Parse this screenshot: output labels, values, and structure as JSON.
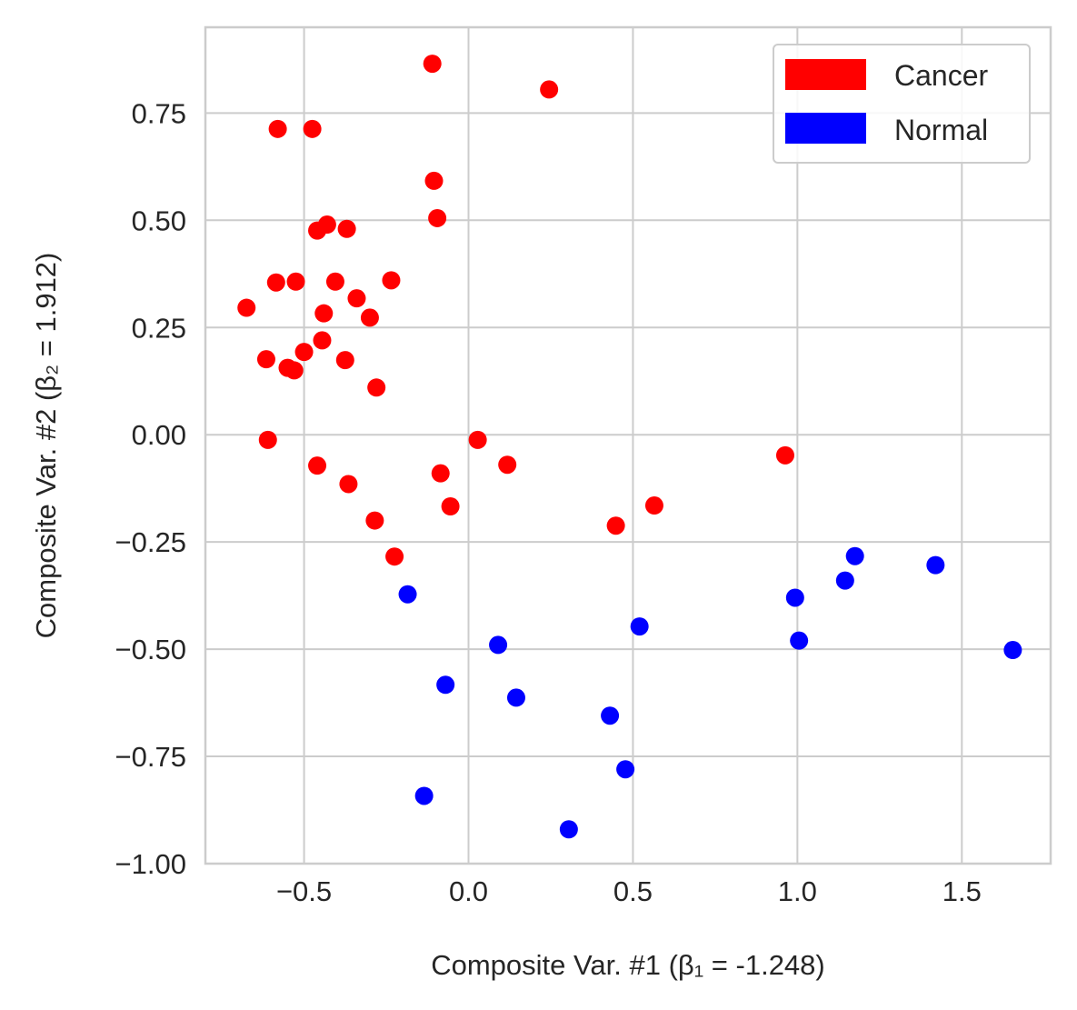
{
  "chart_data": {
    "type": "scatter",
    "title": "",
    "xlabel": "Composite Var. #1 (β₁ = -1.248)",
    "ylabel": "Composite Var. #2 (β₂ = 1.912)",
    "xlim": [
      -0.8,
      1.77
    ],
    "ylim": [
      -1.0,
      0.95
    ],
    "xticks": [
      -0.5,
      0.0,
      0.5,
      1.0,
      1.5
    ],
    "xtick_labels": [
      "−0.5",
      "0.0",
      "0.5",
      "1.0",
      "1.5"
    ],
    "yticks": [
      -1.0,
      -0.75,
      -0.5,
      -0.25,
      0.0,
      0.25,
      0.5,
      0.75
    ],
    "ytick_labels": [
      "−1.00",
      "−0.75",
      "−0.50",
      "−0.25",
      "0.00",
      "0.25",
      "0.50",
      "0.75"
    ],
    "grid": true,
    "legend_position": "top-right",
    "series": [
      {
        "name": "Cancer",
        "color": "#ff0000",
        "points": [
          [
            -0.11,
            0.865
          ],
          [
            0.245,
            0.805
          ],
          [
            -0.58,
            0.713
          ],
          [
            -0.475,
            0.713
          ],
          [
            -0.105,
            0.592
          ],
          [
            -0.095,
            0.505
          ],
          [
            -0.43,
            0.49
          ],
          [
            -0.46,
            0.476
          ],
          [
            -0.37,
            0.48
          ],
          [
            -0.585,
            0.355
          ],
          [
            -0.525,
            0.357
          ],
          [
            -0.405,
            0.357
          ],
          [
            -0.235,
            0.36
          ],
          [
            -0.34,
            0.318
          ],
          [
            -0.675,
            0.296
          ],
          [
            -0.44,
            0.283
          ],
          [
            -0.3,
            0.273
          ],
          [
            -0.445,
            0.22
          ],
          [
            -0.5,
            0.193
          ],
          [
            -0.615,
            0.176
          ],
          [
            -0.375,
            0.174
          ],
          [
            -0.55,
            0.156
          ],
          [
            -0.53,
            0.15
          ],
          [
            -0.28,
            0.11
          ],
          [
            -0.61,
            -0.012
          ],
          [
            0.028,
            -0.012
          ],
          [
            0.963,
            -0.048
          ],
          [
            -0.46,
            -0.072
          ],
          [
            0.118,
            -0.07
          ],
          [
            -0.085,
            -0.09
          ],
          [
            -0.365,
            -0.115
          ],
          [
            -0.055,
            -0.167
          ],
          [
            0.565,
            -0.165
          ],
          [
            -0.285,
            -0.2
          ],
          [
            0.448,
            -0.212
          ],
          [
            -0.225,
            -0.284
          ]
        ]
      },
      {
        "name": "Normal",
        "color": "#0000ff",
        "points": [
          [
            1.175,
            -0.283
          ],
          [
            1.42,
            -0.304
          ],
          [
            1.145,
            -0.34
          ],
          [
            -0.185,
            -0.372
          ],
          [
            0.993,
            -0.38
          ],
          [
            0.52,
            -0.447
          ],
          [
            1.005,
            -0.48
          ],
          [
            0.09,
            -0.49
          ],
          [
            1.655,
            -0.502
          ],
          [
            -0.07,
            -0.583
          ],
          [
            0.145,
            -0.613
          ],
          [
            0.43,
            -0.655
          ],
          [
            0.477,
            -0.78
          ],
          [
            -0.135,
            -0.842
          ],
          [
            0.305,
            -0.92
          ]
        ]
      }
    ]
  }
}
